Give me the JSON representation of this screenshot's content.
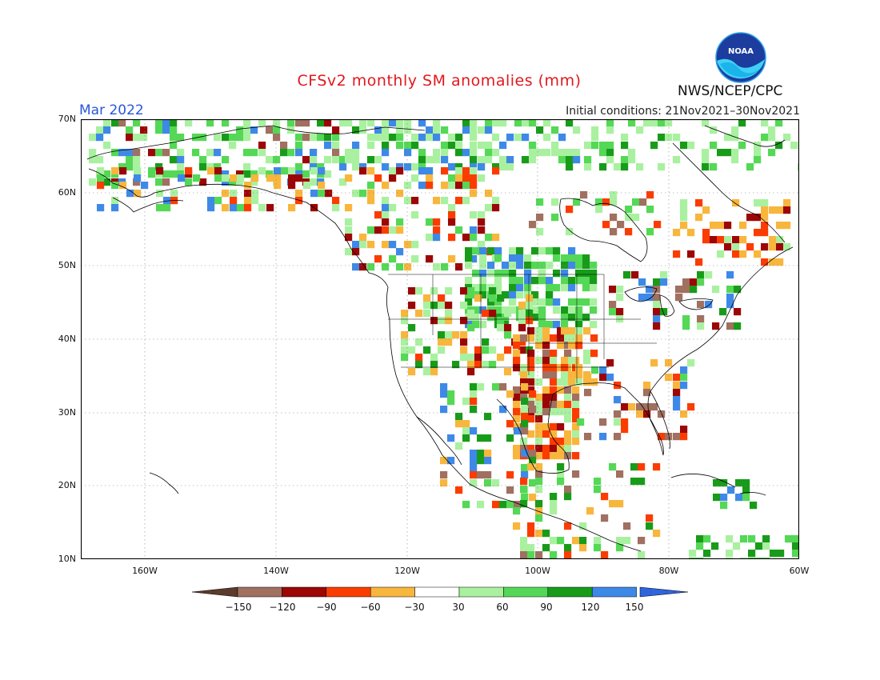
{
  "title": "CFSv2 monthly SM anomalies (mm)",
  "valid_month": "Mar 2022",
  "initial_conditions": "Initial conditions: 21Nov2021–30Nov2021",
  "agency": "NWS/NCEP/CPC",
  "logo_text": "NOAA",
  "lat_labels": [
    "70N",
    "60N",
    "50N",
    "40N",
    "30N",
    "20N",
    "10N"
  ],
  "lon_labels": [
    "160W",
    "140W",
    "120W",
    "100W",
    "80W",
    "60W"
  ],
  "colorbar": {
    "labels": [
      "−150",
      "−120",
      "−90",
      "−60",
      "−30",
      "30",
      "60",
      "90",
      "120",
      "150"
    ],
    "colors": [
      "#5c3b2c",
      "#a07060",
      "#9c0606",
      "#fb3c00",
      "#f8b63d",
      "#ffffff",
      "#a9f1a0",
      "#54d855",
      "#199b1a",
      "#3e89e7",
      "#2d65dc"
    ]
  }
}
